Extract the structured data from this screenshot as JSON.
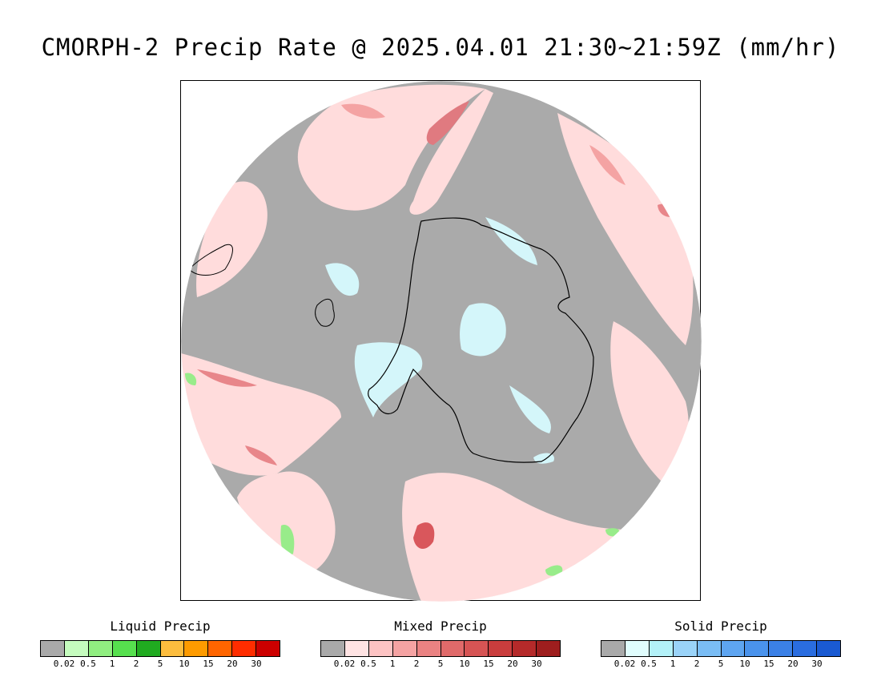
{
  "title": "CMORPH-2 Precip Rate @ 2025.04.01 21:30~21:59Z (mm/hr)",
  "map": {
    "projection": "south-polar-stereographic",
    "colors": {
      "no_precip": "#aaaaaa",
      "mixed_light": "#ffdcdc",
      "mixed_medium": "#f4a3a3",
      "mixed_heavy": "#d9575c",
      "solid_light": "#d4f6fa",
      "liquid_light": "#98ec8a",
      "coastline": "#000000"
    }
  },
  "legends": [
    {
      "title": "Liquid Precip",
      "colors": [
        "#a9a9a9",
        "#c5fcbe",
        "#90ee80",
        "#56e04e",
        "#20ab20",
        "#fcbd3e",
        "#fe9b00",
        "#ff6500",
        "#ff2d00",
        "#cc0000"
      ],
      "ticks": [
        "0.02",
        "0.5",
        "1",
        "2",
        "5",
        "10",
        "15",
        "20",
        "30"
      ]
    },
    {
      "title": "Mixed Precip",
      "colors": [
        "#a9a9a9",
        "#ffe3e3",
        "#fdc3c3",
        "#f5a3a3",
        "#ea8282",
        "#e06a6a",
        "#d65454",
        "#c93d3d",
        "#b52a2a",
        "#9e1e1e"
      ],
      "ticks": [
        "0.02",
        "0.5",
        "1",
        "2",
        "5",
        "10",
        "15",
        "20",
        "30"
      ]
    },
    {
      "title": "Solid Precip",
      "colors": [
        "#a9a9a9",
        "#e0fdfd",
        "#b3f1f8",
        "#9ad3f8",
        "#7abdf5",
        "#5ea5f1",
        "#4a93ec",
        "#3b80e6",
        "#2a6de0",
        "#1a5ad2"
      ],
      "ticks": [
        "0.02",
        "0.5",
        "1",
        "2",
        "5",
        "10",
        "15",
        "20",
        "30"
      ]
    }
  ]
}
